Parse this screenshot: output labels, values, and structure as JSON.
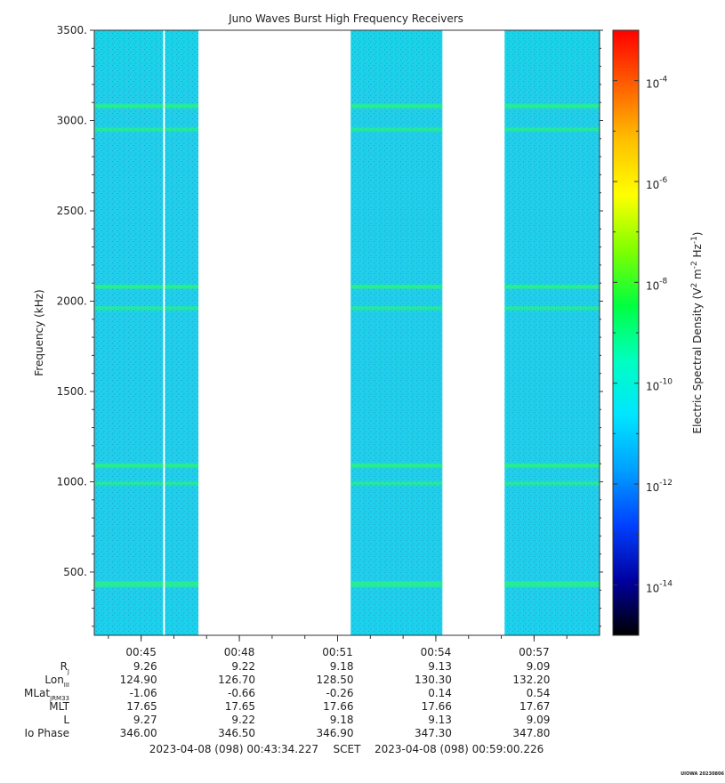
{
  "chart_data": {
    "type": "heatmap",
    "title": "Juno Waves Burst High Frequency Receivers",
    "ylabel": "Frequency (kHz)",
    "ylim": [
      150,
      3500
    ],
    "yticks": [
      "500.",
      "1000.",
      "1500.",
      "2000.",
      "2500.",
      "3000.",
      "3500."
    ],
    "ytick_values": [
      500,
      1000,
      1500,
      2000,
      2500,
      3000,
      3500
    ],
    "xlim_minutes": [
      43.57,
      59.0
    ],
    "xtick_labels": [
      "00:45",
      "00:48",
      "00:51",
      "00:54",
      "00:57"
    ],
    "xtick_minutes": [
      45,
      48,
      51,
      54,
      57
    ],
    "data_blocks_minutes": [
      [
        43.57,
        46.75
      ],
      [
        51.4,
        54.2
      ],
      [
        56.1,
        59.0
      ]
    ],
    "gap_lines_minutes": [
      45.7
    ],
    "emission_bands_khz": [
      3080,
      2950,
      2080,
      1960,
      1090,
      990,
      440,
      420
    ],
    "colorbar": {
      "label": "Electric Spectral Density (V² m⁻² Hz⁻¹)",
      "label_base": "Electric Spectral Density (V",
      "label_exp1": "2",
      "label_mid": " m",
      "label_exp2": "-2",
      "label_mid2": " Hz",
      "label_exp3": "-1",
      "label_end": ")",
      "ticks": [
        {
          "base": "10",
          "exp": "-4",
          "log": -4
        },
        {
          "base": "10",
          "exp": "-6",
          "log": -6
        },
        {
          "base": "10",
          "exp": "-8",
          "log": -8
        },
        {
          "base": "10",
          "exp": "-10",
          "log": -10
        },
        {
          "base": "10",
          "exp": "-12",
          "log": -12
        },
        {
          "base": "10",
          "exp": "-14",
          "log": -14
        }
      ],
      "range_log": [
        -15,
        -3
      ],
      "colors": [
        "#000000",
        "#0000a0",
        "#0040ff",
        "#00a0ff",
        "#00e5ff",
        "#00ffc0",
        "#00ff40",
        "#80ff00",
        "#ffff00",
        "#ffc000",
        "#ff6000",
        "#ff0000"
      ]
    },
    "ephemeris": {
      "row_labels": [
        {
          "main": "R",
          "sub": "J"
        },
        {
          "main": "Lon",
          "sub": "III"
        },
        {
          "main": "MLat",
          "sub": "JRM33"
        },
        {
          "main": "MLT",
          "sub": ""
        },
        {
          "main": "L",
          "sub": ""
        },
        {
          "main": "Io Phase",
          "sub": ""
        }
      ],
      "columns": [
        [
          "9.26",
          "124.90",
          "-1.06",
          "17.65",
          "9.27",
          "346.00"
        ],
        [
          "9.22",
          "126.70",
          "-0.66",
          "17.65",
          "9.22",
          "346.50"
        ],
        [
          "9.18",
          "128.50",
          "-0.26",
          "17.66",
          "9.18",
          "346.90"
        ],
        [
          "9.13",
          "130.30",
          "0.14",
          "17.66",
          "9.13",
          "347.30"
        ],
        [
          "9.09",
          "132.20",
          "0.54",
          "17.67",
          "9.09",
          "347.80"
        ]
      ]
    },
    "time_range_start": "2023-04-08 (098) 00:43:34.227",
    "time_label": "SCET",
    "time_range_end": "2023-04-08 (098) 00:59:00.226",
    "credit": "UIOWA 20230806"
  }
}
